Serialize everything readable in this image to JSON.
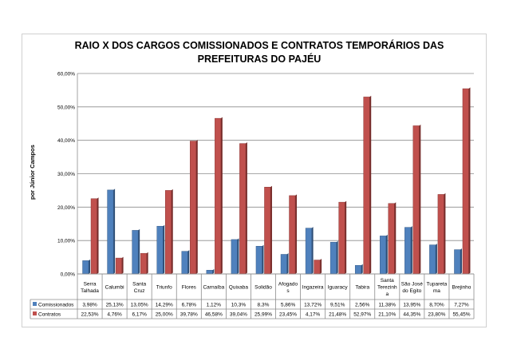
{
  "chart_data": {
    "type": "bar",
    "title": "RAIO X DOS CARGOS COMISSIONADOS E CONTRATOS TEMPORÁRIOS DAS PREFEITURAS DO PAJÉU",
    "side_label": "por Júnior Campos",
    "ylim": [
      0,
      0.6
    ],
    "ytick_labels": [
      "0,00%",
      "10,00%",
      "20,00%",
      "30,00%",
      "40,00%",
      "50,00%",
      "60,00%"
    ],
    "grid": true,
    "legend": "data-table",
    "categories": [
      "Serra Talhada",
      "Calumbi",
      "Santa Cruz",
      "Triunfo",
      "Flores",
      "Carnaíba",
      "Quixaba",
      "Solidão",
      "Afogados",
      "Ingazeira",
      "Iguaracy",
      "Tabira",
      "Santa Terezinha",
      "São José do Egito",
      "Tuparetama",
      "Brejinho"
    ],
    "category_labels": [
      [
        "Serra",
        "Talhada"
      ],
      [
        "Calumbi"
      ],
      [
        "Santa",
        "Cruz"
      ],
      [
        "Triunfo"
      ],
      [
        "Flores"
      ],
      [
        "Carnaíba"
      ],
      [
        "Quixaba"
      ],
      [
        "Solidão"
      ],
      [
        "Afogado",
        "s"
      ],
      [
        "Ingazeira"
      ],
      [
        "Iguaracy"
      ],
      [
        "Tabira"
      ],
      [
        "Santa",
        "Terezinh",
        "a"
      ],
      [
        "São José",
        "do Egito"
      ],
      [
        "Tupareta",
        "ma"
      ],
      [
        "Brejinho"
      ]
    ],
    "series": [
      {
        "name": "Comissionados",
        "color": "#4F81BD",
        "values": [
          0.0398,
          0.2513,
          0.1305,
          0.1429,
          0.0678,
          0.0112,
          0.103,
          0.083,
          0.0586,
          0.1372,
          0.0951,
          0.0256,
          0.1138,
          0.1395,
          0.087,
          0.0727
        ],
        "labels": [
          "3,98%",
          "25,13%",
          "13,05%",
          "14,29%",
          "6,78%",
          "1,12%",
          "10,3%",
          "8,3%",
          "5,86%",
          "13,72%",
          "9,51%",
          "2,56%",
          "11,38%",
          "13,95%",
          "8,70%",
          "7,27%"
        ]
      },
      {
        "name": "Contratos",
        "color": "#C0504D",
        "values": [
          0.2253,
          0.0476,
          0.0617,
          0.25,
          0.3978,
          0.4658,
          0.3904,
          0.2599,
          0.2345,
          0.0417,
          0.2148,
          0.5297,
          0.211,
          0.4435,
          0.238,
          0.5545
        ],
        "labels": [
          "22,53%",
          "4,76%",
          "6,17%",
          "25,00%",
          "39,78%",
          "46,58%",
          "39,04%",
          "25,99%",
          "23,45%",
          "4,17%",
          "21,48%",
          "52,97%",
          "21,10%",
          "44,35%",
          "23,80%",
          "55,45%"
        ]
      }
    ]
  }
}
